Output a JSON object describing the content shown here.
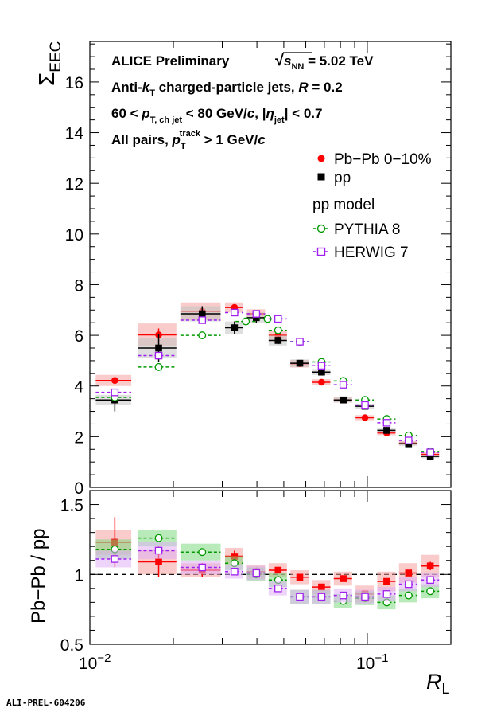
{
  "chart_data": [
    {
      "type": "scatter",
      "panel": "top",
      "ylabel_main": "Σ",
      "ylabel_sub": "EEC",
      "ylim": [
        0,
        17.6
      ],
      "yticks": [
        0,
        2,
        4,
        6,
        8,
        10,
        12,
        14,
        16
      ],
      "xscale": "log",
      "xlim": [
        0.01,
        0.2
      ],
      "annotations": {
        "line1_collab": "ALICE Preliminary",
        "line1_energy_pre": "√",
        "line1_energy_s": "s",
        "line1_energy_sub": "NN",
        "line1_energy_val": " = 5.02 TeV",
        "line2_pre": "Anti-",
        "line2_k": "k",
        "line2_ksub": "T",
        "line2_mid": " charged-particle jets,  ",
        "line2_R": "R",
        "line2_post": " = 0.2",
        "line3_pre": "60 <   ",
        "line3_p": "p",
        "line3_psub": "T, ch jet",
        "line3_mid": " < 80 GeV/",
        "line3_c": "c",
        "line3_eta_pre": ", |",
        "line3_eta": "η",
        "line3_eta_sub": "jet",
        "line3_post": "| < 0.7",
        "line4_pre": "All pairs,   ",
        "line4_p": "p",
        "line4_psub": "T",
        "line4_psup": "track",
        "line4_mid": " > 1 GeV/",
        "line4_c": "c"
      },
      "legend": {
        "pbpb": "Pb−Pb 0−10%",
        "pp": "pp",
        "model_header": "pp model",
        "pythia": "PYTHIA 8",
        "herwig": "HERWIG 7"
      },
      "series": [
        {
          "name": "Pb−Pb 0−10%",
          "color": "#ff0000",
          "marker": "filled-circle",
          "x": [
            0.0123,
            0.0177,
            0.0254,
            0.0332,
            0.0398,
            0.0477,
            0.0571,
            0.0684,
            0.0819,
            0.0981,
            0.1175,
            0.1408,
            0.1686
          ],
          "xerr": [
            0.0018,
            0.0028,
            0.0042,
            0.0025,
            0.003,
            0.0036,
            0.0043,
            0.0052,
            0.0062,
            0.0074,
            0.0089,
            0.0107,
            0.0128
          ],
          "y": [
            4.22,
            6.02,
            6.95,
            7.1,
            6.85,
            6.0,
            4.88,
            4.15,
            3.45,
            2.75,
            2.15,
            1.75,
            1.3
          ],
          "yerr": [
            0.12,
            0.25,
            0.2,
            0.12,
            0.12,
            0.1,
            0.1,
            0.08,
            0.06,
            0.05,
            0.04,
            0.04,
            0.04
          ],
          "syst": [
            0.22,
            0.45,
            0.35,
            0.2,
            0.18,
            0.2,
            0.15,
            0.12,
            0.1,
            0.1,
            0.09,
            0.08,
            0.08
          ]
        },
        {
          "name": "pp",
          "color": "#000000",
          "marker": "filled-square",
          "x": [
            0.0123,
            0.0177,
            0.0254,
            0.0332,
            0.0398,
            0.0477,
            0.0571,
            0.0684,
            0.0819,
            0.0981,
            0.1175,
            0.1408,
            0.1686
          ],
          "xerr": [
            0.0018,
            0.0028,
            0.0042,
            0.0025,
            0.003,
            0.0036,
            0.0043,
            0.0052,
            0.0062,
            0.0074,
            0.0089,
            0.0107,
            0.0128
          ],
          "y": [
            3.45,
            5.5,
            6.85,
            6.3,
            6.7,
            5.8,
            4.9,
            4.55,
            3.45,
            3.2,
            2.25,
            1.72,
            1.22
          ],
          "yerr": [
            0.45,
            0.55,
            0.3,
            0.25,
            0.2,
            0.15,
            0.12,
            0.1,
            0.08,
            0.07,
            0.06,
            0.05,
            0.05
          ],
          "syst": [
            0.2,
            0.4,
            0.3,
            0.25,
            0.2,
            0.2,
            0.15,
            0.12,
            0.1,
            0.1,
            0.09,
            0.08,
            0.07
          ]
        },
        {
          "name": "PYTHIA 8",
          "color": "#009900",
          "marker": "open-circle",
          "x": [
            0.0123,
            0.0177,
            0.0254,
            0.0365,
            0.0437,
            0.0477,
            0.0571,
            0.0684,
            0.0819,
            0.0981,
            0.1175,
            0.1408,
            0.1686
          ],
          "xerr": [
            0.0018,
            0.0028,
            0.0042,
            0.003,
            0.0035,
            0.0036,
            0.0043,
            0.0052,
            0.0062,
            0.0074,
            0.0089,
            0.0107,
            0.0128
          ],
          "y": [
            3.55,
            4.75,
            6.0,
            6.55,
            6.65,
            6.2,
            5.75,
            4.95,
            4.2,
            3.45,
            2.7,
            2.05,
            1.42
          ]
        },
        {
          "name": "HERWIG 7",
          "color": "#a020f0",
          "marker": "open-square",
          "x": [
            0.0123,
            0.0177,
            0.0254,
            0.0332,
            0.0398,
            0.0477,
            0.0571,
            0.0684,
            0.0819,
            0.0981,
            0.1175,
            0.1408,
            0.1686
          ],
          "xerr": [
            0.0018,
            0.0028,
            0.0042,
            0.0025,
            0.003,
            0.0036,
            0.0043,
            0.0052,
            0.0062,
            0.0074,
            0.0089,
            0.0107,
            0.0128
          ],
          "y": [
            3.75,
            5.2,
            6.6,
            6.9,
            6.85,
            6.65,
            5.75,
            4.8,
            4.05,
            3.25,
            2.55,
            1.85,
            1.38
          ]
        }
      ]
    },
    {
      "type": "scatter",
      "panel": "bottom",
      "ylabel": "Pb−Pb / pp",
      "xlabel_main": "R",
      "xlabel_sub": "L",
      "ylim": [
        0.5,
        1.6
      ],
      "yticks": [
        0.5,
        1,
        1.5
      ],
      "xscale": "log",
      "xlim": [
        0.01,
        0.2
      ],
      "xtick_labels": [
        {
          "value": 0.01,
          "base": "10",
          "exp": "−2"
        },
        {
          "value": 0.1,
          "base": "10",
          "exp": "−1"
        }
      ],
      "reference_line": 1,
      "series": [
        {
          "name": "Pb−Pb / pp",
          "color": "#ff0000",
          "marker": "filled-square",
          "x": [
            0.0123,
            0.0177,
            0.0254,
            0.0332,
            0.0398,
            0.0477,
            0.0571,
            0.0684,
            0.0819,
            0.0981,
            0.1175,
            0.1408,
            0.1686
          ],
          "xerr": [
            0.0018,
            0.0028,
            0.0042,
            0.0025,
            0.003,
            0.0036,
            0.0043,
            0.0052,
            0.0062,
            0.0074,
            0.0089,
            0.0107,
            0.0128
          ],
          "y": [
            1.23,
            1.09,
            1.03,
            1.13,
            1.02,
            1.03,
            0.98,
            0.91,
            0.97,
            0.86,
            0.95,
            1.01,
            1.06
          ],
          "yerr": [
            0.18,
            0.11,
            0.05,
            0.04,
            0.03,
            0.02,
            0.02,
            0.02,
            0.02,
            0.02,
            0.02,
            0.02,
            0.03
          ],
          "syst": [
            0.09,
            0.09,
            0.05,
            0.06,
            0.05,
            0.05,
            0.05,
            0.05,
            0.05,
            0.06,
            0.07,
            0.07,
            0.08
          ]
        },
        {
          "name": "PYTHIA 8",
          "color": "#009900",
          "marker": "open-circle",
          "x": [
            0.0123,
            0.0177,
            0.0254,
            0.0332,
            0.0398,
            0.0477,
            0.0571,
            0.0684,
            0.0819,
            0.0981,
            0.1175,
            0.1408,
            0.1686
          ],
          "xerr": [
            0.0018,
            0.0028,
            0.0042,
            0.0025,
            0.003,
            0.0036,
            0.0043,
            0.0052,
            0.0062,
            0.0074,
            0.0089,
            0.0107,
            0.0128
          ],
          "y": [
            1.18,
            1.26,
            1.16,
            1.08,
            1.0,
            0.96,
            0.84,
            0.84,
            0.81,
            0.83,
            0.8,
            0.85,
            0.88
          ],
          "syst": [
            0.07,
            0.06,
            0.06,
            0.05,
            0.05,
            0.05,
            0.05,
            0.05,
            0.05,
            0.05,
            0.05,
            0.05,
            0.05
          ]
        },
        {
          "name": "HERWIG 7",
          "color": "#a020f0",
          "marker": "open-square",
          "x": [
            0.0123,
            0.0177,
            0.0254,
            0.0332,
            0.0398,
            0.0477,
            0.0571,
            0.0684,
            0.0819,
            0.0981,
            0.1175,
            0.1408,
            0.1686
          ],
          "xerr": [
            0.0018,
            0.0028,
            0.0042,
            0.0025,
            0.003,
            0.0036,
            0.0043,
            0.0052,
            0.0062,
            0.0074,
            0.0089,
            0.0107,
            0.0128
          ],
          "y": [
            1.11,
            1.17,
            1.05,
            1.02,
            1.01,
            0.9,
            0.84,
            0.84,
            0.85,
            0.84,
            0.86,
            0.93,
            0.96
          ],
          "syst": [
            0.06,
            0.06,
            0.05,
            0.05,
            0.05,
            0.05,
            0.05,
            0.05,
            0.05,
            0.05,
            0.05,
            0.05,
            0.05
          ]
        }
      ]
    }
  ],
  "footer": "ALI-PREL-604206"
}
